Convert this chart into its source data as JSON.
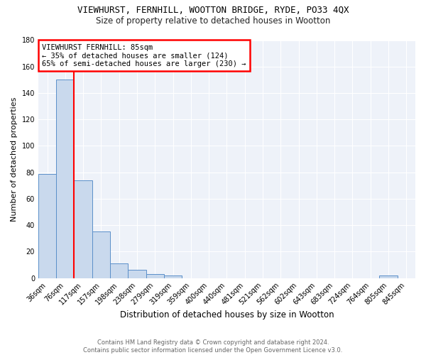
{
  "title1": "VIEWHURST, FERNHILL, WOOTTON BRIDGE, RYDE, PO33 4QX",
  "title2": "Size of property relative to detached houses in Wootton",
  "xlabel": "Distribution of detached houses by size in Wootton",
  "ylabel": "Number of detached properties",
  "bar_color": "#c9d9ed",
  "bar_edge_color": "#5b8fc9",
  "categories": [
    "36sqm",
    "76sqm",
    "117sqm",
    "157sqm",
    "198sqm",
    "238sqm",
    "279sqm",
    "319sqm",
    "359sqm",
    "400sqm",
    "440sqm",
    "481sqm",
    "521sqm",
    "562sqm",
    "602sqm",
    "643sqm",
    "683sqm",
    "724sqm",
    "764sqm",
    "805sqm",
    "845sqm"
  ],
  "values": [
    79,
    150,
    74,
    35,
    11,
    6,
    3,
    2,
    0,
    0,
    0,
    0,
    0,
    0,
    0,
    0,
    0,
    0,
    0,
    2,
    0
  ],
  "ylim": [
    0,
    180
  ],
  "yticks": [
    0,
    20,
    40,
    60,
    80,
    100,
    120,
    140,
    160,
    180
  ],
  "property_size": 85,
  "property_name": "VIEWHURST FERNHILL",
  "pct_smaller": 35,
  "n_smaller": 124,
  "pct_larger": 65,
  "n_larger": 230,
  "footer_line1": "Contains HM Land Registry data © Crown copyright and database right 2024.",
  "footer_line2": "Contains public sector information licensed under the Open Government Licence v3.0.",
  "background_color": "#eef2f9"
}
